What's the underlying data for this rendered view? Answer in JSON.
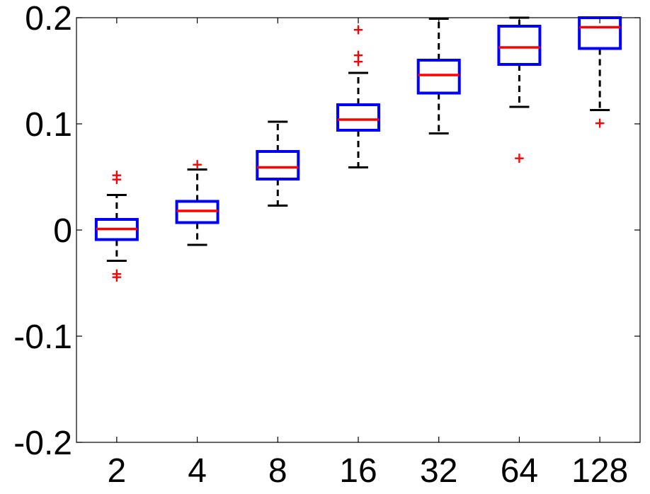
{
  "chart_data": {
    "type": "box",
    "categories": [
      "2",
      "4",
      "8",
      "16",
      "32",
      "64",
      "128"
    ],
    "ylim": [
      -0.2,
      0.2
    ],
    "yticks": [
      -0.2,
      -0.1,
      0,
      0.1,
      0.2
    ],
    "ytick_labels": [
      "-0.2",
      "-0.1",
      "0",
      "0.1",
      "0.2"
    ],
    "colors": {
      "box": "#0000ff",
      "median": "#ff0000",
      "whisker": "#000000",
      "outlier": "#ff0000"
    },
    "grid": false,
    "boxes": [
      {
        "category": "2",
        "whisker_low": -0.029,
        "q1": -0.009,
        "median": 0.001,
        "q3": 0.01,
        "whisker_high": 0.033,
        "outliers": [
          -0.044,
          -0.041,
          0.048,
          0.052
        ]
      },
      {
        "category": "4",
        "whisker_low": -0.014,
        "q1": 0.007,
        "median": 0.018,
        "q3": 0.027,
        "whisker_high": 0.057,
        "outliers": [
          0.062
        ]
      },
      {
        "category": "8",
        "whisker_low": 0.023,
        "q1": 0.048,
        "median": 0.059,
        "q3": 0.074,
        "whisker_high": 0.102,
        "outliers": []
      },
      {
        "category": "16",
        "whisker_low": 0.059,
        "q1": 0.094,
        "median": 0.104,
        "q3": 0.118,
        "whisker_high": 0.148,
        "outliers": [
          0.159,
          0.165,
          0.189
        ]
      },
      {
        "category": "32",
        "whisker_low": 0.091,
        "q1": 0.129,
        "median": 0.146,
        "q3": 0.16,
        "whisker_high": 0.199,
        "outliers": []
      },
      {
        "category": "64",
        "whisker_low": 0.116,
        "q1": 0.156,
        "median": 0.172,
        "q3": 0.192,
        "whisker_high": 0.2,
        "outliers": [
          0.068
        ]
      },
      {
        "category": "128",
        "whisker_low": 0.113,
        "q1": 0.171,
        "median": 0.191,
        "q3": 0.2,
        "whisker_high": 0.2,
        "outliers": [
          0.101
        ]
      }
    ]
  }
}
